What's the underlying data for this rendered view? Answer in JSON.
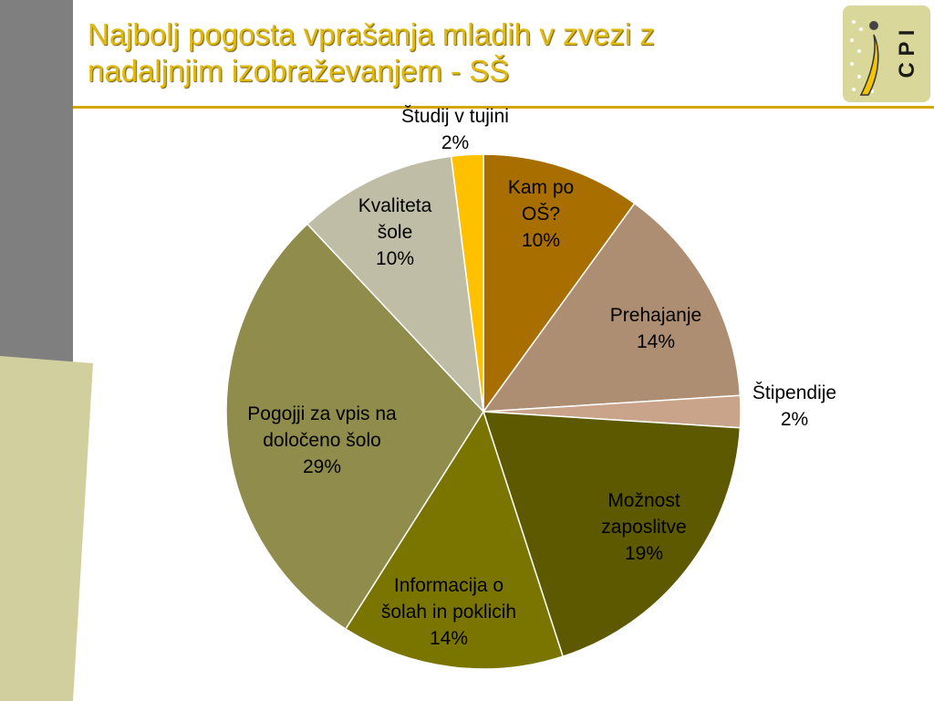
{
  "slide": {
    "title_line1": "Najbolj pogosta vprašanja mladih v zvezi z",
    "title_line2": "nadaljnjim izobraževanjem - SŠ"
  },
  "logo": {
    "text": "C P I",
    "icon": "cpi-logo-icon"
  },
  "colors": {
    "title": "#e2ba0c",
    "rule": "#d4a500",
    "sidebar": "#7f7f7f",
    "panel": "#d1cf9e"
  },
  "chart_data": {
    "type": "pie",
    "start_angle_deg": 0,
    "direction": "clockwise",
    "slices": [
      {
        "lines": [
          "Kam po",
          "OŠ?",
          "10%"
        ],
        "value": 10,
        "color": "#a86f00"
      },
      {
        "lines": [
          "Prehajanje",
          "14%"
        ],
        "value": 14,
        "color": "#ad8e73"
      },
      {
        "lines": [
          "Štipendije",
          "2%"
        ],
        "value": 2,
        "color": "#c9a48a"
      },
      {
        "lines": [
          "Možnost",
          "zaposlitve",
          "19%"
        ],
        "value": 19,
        "color": "#5c5900"
      },
      {
        "lines": [
          "Informacija o",
          "šolah in poklicih",
          "14%"
        ],
        "value": 14,
        "color": "#7a7500"
      },
      {
        "lines": [
          "Pogojji za vpis na",
          "določeno šolo",
          "29%"
        ],
        "value": 29,
        "color": "#8f8c4c"
      },
      {
        "lines": [
          "Kvaliteta",
          "šole",
          "10%"
        ],
        "value": 10,
        "color": "#bfbda5"
      },
      {
        "lines": [
          "Študij v tujini",
          "2%"
        ],
        "value": 2,
        "color": "#ffc000"
      }
    ]
  }
}
